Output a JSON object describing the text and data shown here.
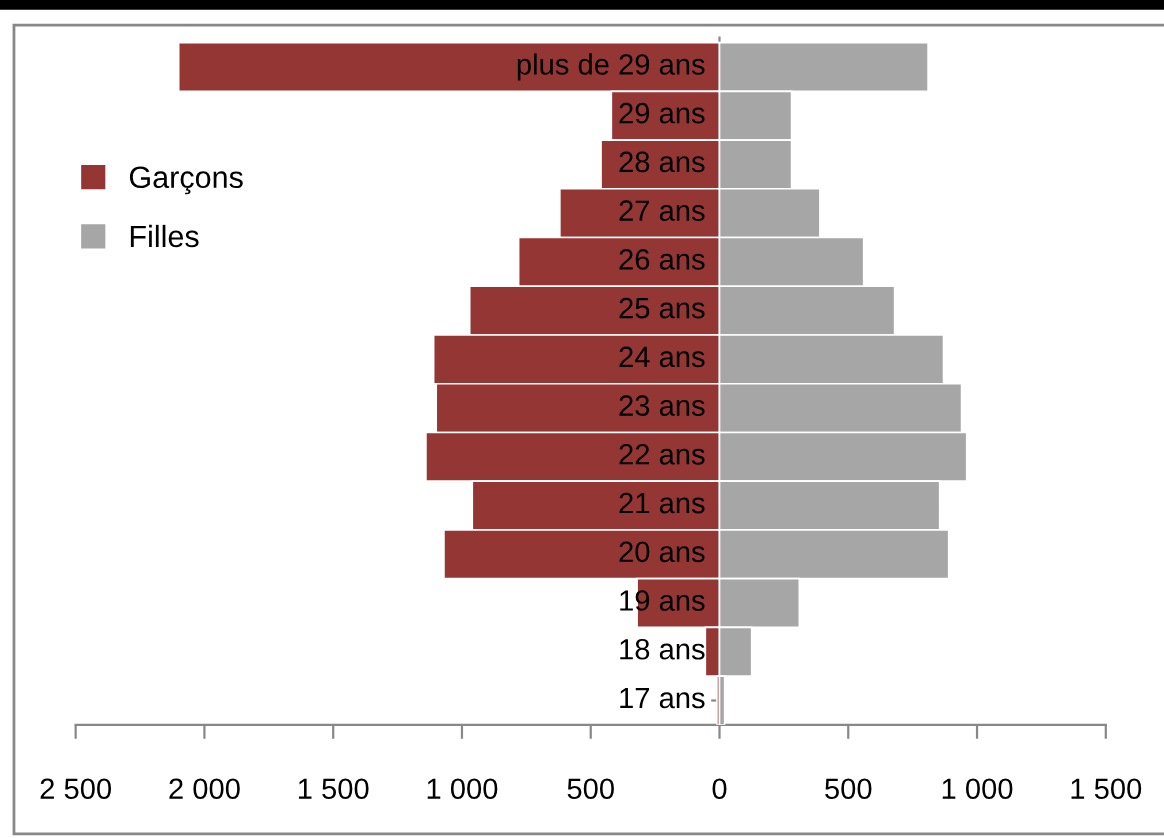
{
  "chart_data": {
    "type": "bar",
    "orientation": "horizontal",
    "stacked": true,
    "categories": [
      "plus de 29 ans",
      "29 ans",
      "28 ans",
      "27 ans",
      "26 ans",
      "25 ans",
      "24 ans",
      "23 ans",
      "22 ans",
      "21 ans",
      "20 ans",
      "19 ans",
      "18 ans",
      "17 ans"
    ],
    "series": [
      {
        "name": "Garçons",
        "color": "#943634",
        "values": [
          -2100,
          -420,
          -460,
          -620,
          -780,
          -970,
          -1110,
          -1100,
          -1140,
          -960,
          -1070,
          -320,
          -55,
          -10
        ]
      },
      {
        "name": "Filles",
        "color": "#a6a6a6",
        "values": [
          810,
          280,
          280,
          390,
          560,
          680,
          870,
          940,
          960,
          855,
          890,
          310,
          125,
          20
        ]
      }
    ],
    "xlim": [
      -2500,
      1500
    ],
    "xticks": [
      {
        "value": -2500,
        "label": "2 500"
      },
      {
        "value": -2000,
        "label": "2 000"
      },
      {
        "value": -1500,
        "label": "1 500"
      },
      {
        "value": -1000,
        "label": "1 000"
      },
      {
        "value": -500,
        "label": "500"
      },
      0,
      500,
      {
        "value": 1000,
        "label": "1 000"
      },
      {
        "value": 1500,
        "label": "1 500"
      }
    ],
    "grid": false,
    "legend": "left"
  }
}
